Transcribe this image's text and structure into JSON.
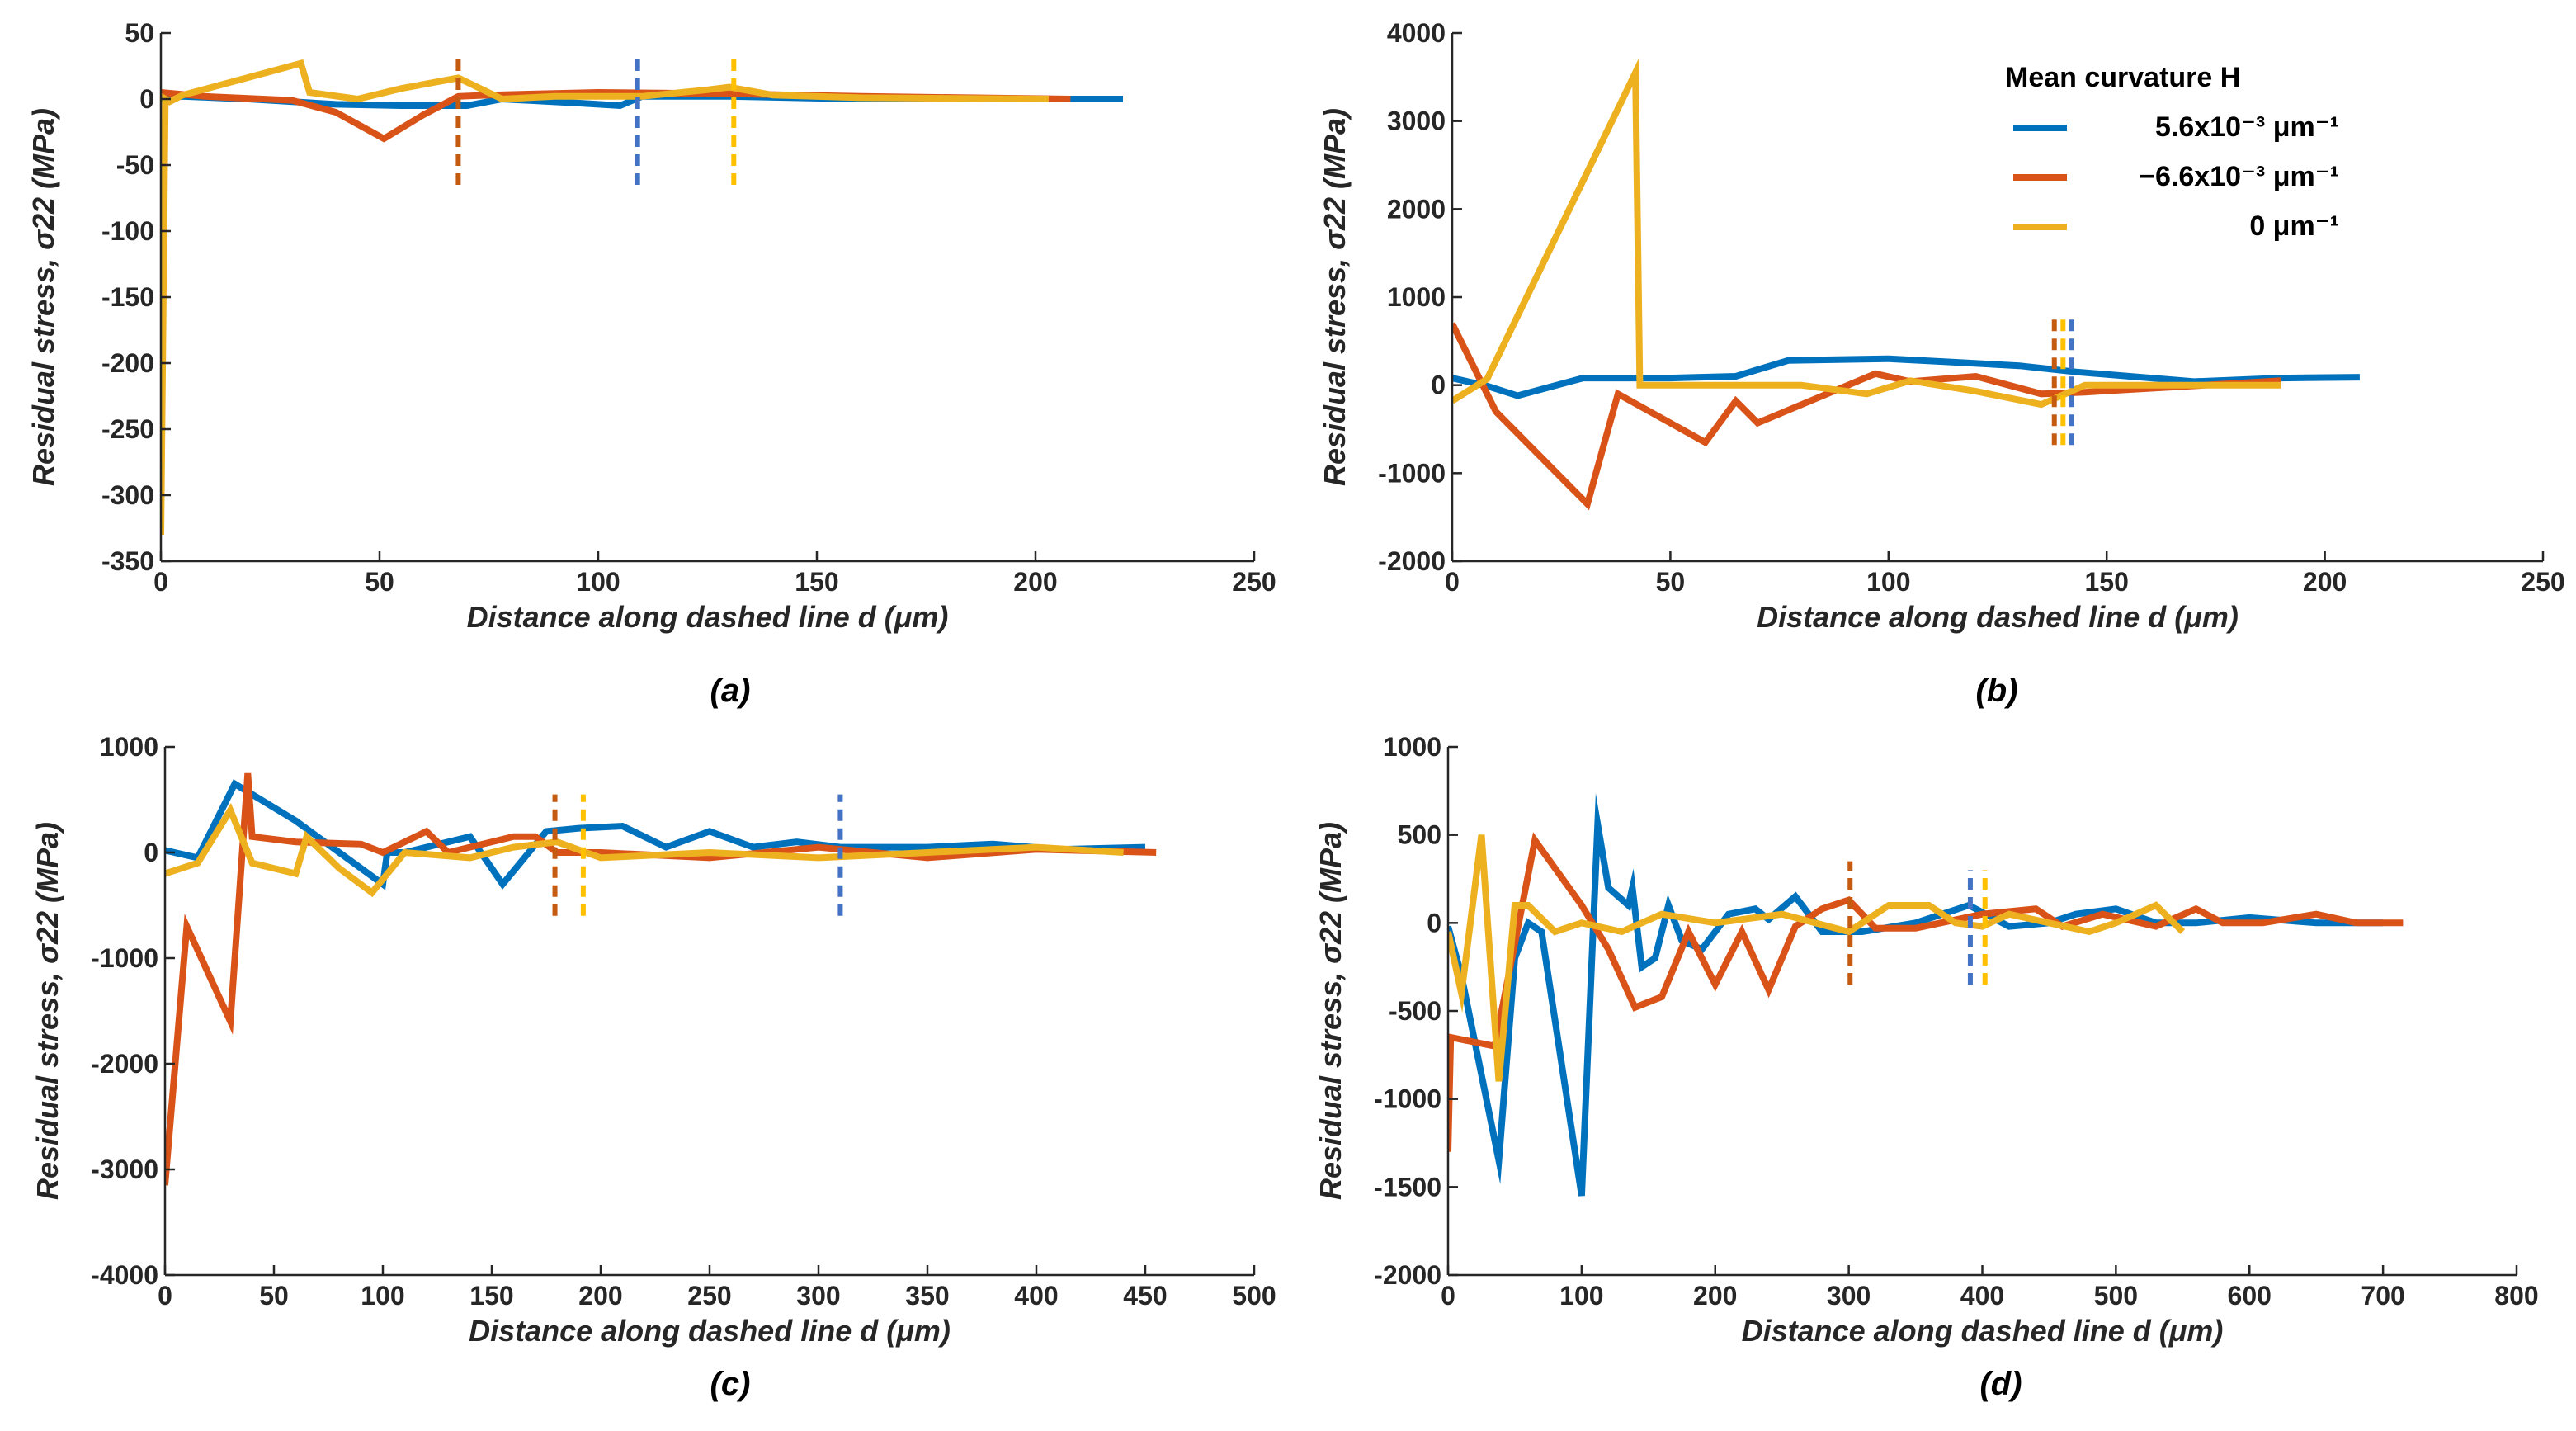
{
  "colors": {
    "blue": "#0072BD",
    "orange": "#D95319",
    "yellow": "#EDB120",
    "marker_blue": "#4472C4",
    "marker_orange": "#C55A11",
    "marker_yellow": "#FFC000",
    "axis": "#262626"
  },
  "legend": {
    "title": "Mean curvature H",
    "entries": [
      {
        "label": "5.6x10⁻³ μm⁻¹",
        "series": "blue"
      },
      {
        "label": "−6.6x10⁻³ μm⁻¹",
        "series": "orange"
      },
      {
        "label": "0 μm⁻¹",
        "series": "yellow"
      }
    ]
  },
  "chart_data": [
    {
      "id": "a",
      "type": "line",
      "panel_label": "(a)",
      "xlabel": "Distance along dashed line d (μm)",
      "ylabel": "Residual stress, σ22 (MPa)",
      "xlim": [
        0,
        250
      ],
      "ylim": [
        -350,
        50
      ],
      "xticks": [
        0,
        50,
        100,
        150,
        200,
        250
      ],
      "yticks": [
        50,
        0,
        -50,
        -100,
        -150,
        -200,
        -250,
        -300,
        -350
      ],
      "series": [
        {
          "name": "blue",
          "color": "blue",
          "x": [
            0,
            5,
            20,
            40,
            55,
            70,
            78,
            95,
            105,
            110,
            130,
            160,
            220
          ],
          "y": [
            0,
            2,
            0,
            -4,
            -5,
            -5,
            0,
            -3,
            -5,
            2,
            2,
            0,
            0
          ]
        },
        {
          "name": "orange",
          "color": "orange",
          "x": [
            0,
            10,
            30,
            40,
            51,
            60,
            68,
            75,
            100,
            130,
            160,
            208
          ],
          "y": [
            5,
            2,
            -1,
            -10,
            -30,
            -12,
            2,
            3,
            5,
            4,
            2,
            0
          ]
        },
        {
          "name": "yellow",
          "color": "yellow",
          "x": [
            0,
            1,
            2,
            5,
            32,
            34,
            45,
            55,
            68,
            78,
            90,
            110,
            125,
            130,
            140,
            160,
            203
          ],
          "y": [
            -330,
            0,
            -2,
            3,
            27,
            5,
            0,
            8,
            16,
            0,
            2,
            2,
            7,
            9,
            3,
            1,
            0
          ]
        }
      ],
      "markers": [
        {
          "color": "marker_orange",
          "x": 68,
          "y": [
            -65,
            30
          ]
        },
        {
          "color": "marker_blue",
          "x": 109,
          "y": [
            -65,
            30
          ]
        },
        {
          "color": "marker_yellow",
          "x": 131,
          "y": [
            -65,
            30
          ]
        }
      ]
    },
    {
      "id": "b",
      "type": "line",
      "panel_label": "(b)",
      "xlabel": "Distance along dashed line d (μm)",
      "ylabel": "Residual stress, σ22 (MPa)",
      "xlim": [
        0,
        250
      ],
      "ylim": [
        -2000,
        4000
      ],
      "xticks": [
        0,
        50,
        100,
        150,
        200,
        250
      ],
      "yticks": [
        4000,
        3000,
        2000,
        1000,
        0,
        -1000,
        -2000
      ],
      "series": [
        {
          "name": "blue",
          "color": "blue",
          "x": [
            0,
            8,
            15,
            30,
            50,
            65,
            77,
            100,
            115,
            130,
            143,
            170,
            190,
            208
          ],
          "y": [
            80,
            -10,
            -120,
            80,
            80,
            100,
            280,
            300,
            260,
            220,
            150,
            40,
            80,
            90
          ]
        },
        {
          "name": "orange",
          "color": "orange",
          "x": [
            0,
            10,
            31,
            38,
            58,
            65,
            70,
            97,
            105,
            120,
            135,
            145,
            190
          ],
          "y": [
            700,
            -300,
            -1350,
            -100,
            -650,
            -180,
            -430,
            130,
            40,
            100,
            -100,
            -80,
            50
          ]
        },
        {
          "name": "yellow",
          "color": "yellow",
          "x": [
            0,
            8,
            42,
            43,
            44,
            80,
            95,
            105,
            120,
            135,
            145,
            190
          ],
          "y": [
            -180,
            70,
            3550,
            0,
            0,
            0,
            -100,
            50,
            -70,
            -220,
            0,
            0
          ]
        }
      ],
      "markers": [
        {
          "color": "marker_orange",
          "x": 138,
          "y": [
            -680,
            770
          ]
        },
        {
          "color": "marker_yellow",
          "x": 140,
          "y": [
            -680,
            770
          ]
        },
        {
          "color": "marker_blue",
          "x": 142,
          "y": [
            -680,
            770
          ]
        }
      ]
    },
    {
      "id": "c",
      "type": "line",
      "panel_label": "(c)",
      "xlabel": "Distance along dashed line d (μm)",
      "ylabel": "Residual stress, σ22 (MPa)",
      "xlim": [
        0,
        500
      ],
      "ylim": [
        -4000,
        1000
      ],
      "xticks": [
        0,
        50,
        100,
        150,
        200,
        250,
        300,
        350,
        400,
        450,
        500
      ],
      "yticks": [
        1000,
        0,
        -1000,
        -2000,
        -3000,
        -4000
      ],
      "series": [
        {
          "name": "blue",
          "color": "blue",
          "x": [
            0,
            15,
            32,
            60,
            100,
            102,
            110,
            140,
            155,
            175,
            190,
            210,
            230,
            250,
            270,
            290,
            310,
            350,
            380,
            410,
            450
          ],
          "y": [
            20,
            -50,
            650,
            300,
            -300,
            0,
            0,
            150,
            -300,
            200,
            230,
            250,
            50,
            200,
            50,
            100,
            50,
            50,
            80,
            30,
            50
          ]
        },
        {
          "name": "orange",
          "color": "orange",
          "x": [
            0,
            10,
            30,
            38,
            40,
            60,
            90,
            100,
            120,
            130,
            160,
            170,
            180,
            200,
            250,
            300,
            350,
            400,
            455
          ],
          "y": [
            -3150,
            -700,
            -1600,
            750,
            150,
            100,
            80,
            0,
            200,
            0,
            150,
            150,
            0,
            0,
            -50,
            50,
            -50,
            30,
            0
          ]
        },
        {
          "name": "yellow",
          "color": "yellow",
          "x": [
            0,
            15,
            30,
            40,
            60,
            65,
            80,
            95,
            110,
            140,
            160,
            180,
            200,
            250,
            300,
            350,
            400,
            440
          ],
          "y": [
            -200,
            -100,
            400,
            -100,
            -200,
            150,
            -150,
            -380,
            0,
            -50,
            50,
            100,
            -50,
            0,
            -50,
            0,
            50,
            0
          ]
        }
      ],
      "markers": [
        {
          "color": "marker_orange",
          "x": 179,
          "y": [
            -600,
            550
          ]
        },
        {
          "color": "marker_yellow",
          "x": 192,
          "y": [
            -600,
            550
          ]
        },
        {
          "color": "marker_blue",
          "x": 310,
          "y": [
            -600,
            550
          ]
        }
      ]
    },
    {
      "id": "d",
      "type": "line",
      "panel_label": "(d)",
      "xlabel": "Distance along dashed line d (μm)",
      "ylabel": "Residual stress, σ22 (MPa)",
      "xlim": [
        0,
        800
      ],
      "ylim": [
        -2000,
        1000
      ],
      "xticks": [
        0,
        100,
        200,
        300,
        400,
        500,
        600,
        700,
        800
      ],
      "yticks": [
        1000,
        500,
        0,
        -500,
        -1000,
        -1500,
        -2000
      ],
      "series": [
        {
          "name": "blue",
          "color": "blue",
          "x": [
            0,
            10,
            38,
            50,
            60,
            70,
            100,
            112,
            120,
            135,
            138,
            145,
            155,
            165,
            175,
            190,
            210,
            230,
            240,
            260,
            280,
            310,
            350,
            390,
            420,
            450,
            470,
            500,
            530,
            560,
            600,
            650,
            700
          ],
          "y": [
            -20,
            -300,
            -1350,
            -200,
            0,
            -50,
            -1550,
            560,
            200,
            100,
            200,
            -250,
            -200,
            100,
            -100,
            -150,
            50,
            80,
            20,
            150,
            -50,
            -50,
            0,
            100,
            -20,
            0,
            50,
            80,
            0,
            0,
            30,
            0,
            0
          ]
        },
        {
          "name": "orange",
          "color": "orange",
          "x": [
            0,
            2,
            35,
            65,
            100,
            120,
            140,
            160,
            180,
            200,
            220,
            240,
            260,
            280,
            300,
            320,
            350,
            400,
            440,
            460,
            490,
            530,
            560,
            580,
            610,
            650,
            680,
            715
          ],
          "y": [
            -1300,
            -650,
            -700,
            470,
            100,
            -150,
            -480,
            -420,
            -50,
            -350,
            -50,
            -380,
            -20,
            80,
            130,
            -30,
            -30,
            50,
            80,
            -20,
            50,
            -20,
            80,
            0,
            0,
            50,
            0,
            0
          ]
        },
        {
          "name": "yellow",
          "color": "yellow",
          "x": [
            0,
            10,
            25,
            38,
            50,
            60,
            80,
            100,
            130,
            160,
            200,
            250,
            300,
            330,
            360,
            380,
            400,
            420,
            450,
            480,
            500,
            530,
            550
          ],
          "y": [
            -50,
            -400,
            500,
            -900,
            100,
            100,
            -50,
            0,
            -50,
            50,
            0,
            50,
            -50,
            100,
            100,
            0,
            -20,
            50,
            0,
            -50,
            0,
            100,
            -50
          ]
        }
      ],
      "markers": [
        {
          "color": "marker_orange",
          "x": 301,
          "y": [
            -350,
            350
          ]
        },
        {
          "color": "marker_blue",
          "x": 391,
          "y": [
            -350,
            300
          ]
        },
        {
          "color": "marker_yellow",
          "x": 402,
          "y": [
            -350,
            300
          ]
        }
      ]
    }
  ]
}
